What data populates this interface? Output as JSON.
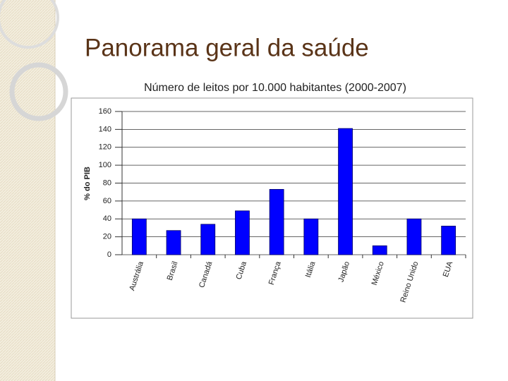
{
  "slide_title": "Panorama geral da saúde",
  "chart_data": {
    "type": "bar",
    "title": "Número de leitos por 10.000 habitantes (2000-2007)",
    "y_label": "% do PIB",
    "categories": [
      "Austrália",
      "Brasil",
      "Canadá",
      "Cuba",
      "França",
      "Itália",
      "Japão",
      "México",
      "Reino Unido",
      "EUA"
    ],
    "values": [
      40,
      27,
      34,
      49,
      73,
      40,
      141,
      10,
      40,
      32
    ],
    "color": "#0000ff",
    "ylim": [
      0,
      160
    ],
    "yticks": [
      0,
      20,
      40,
      60,
      80,
      100,
      120,
      140,
      160
    ],
    "grid": true
  }
}
